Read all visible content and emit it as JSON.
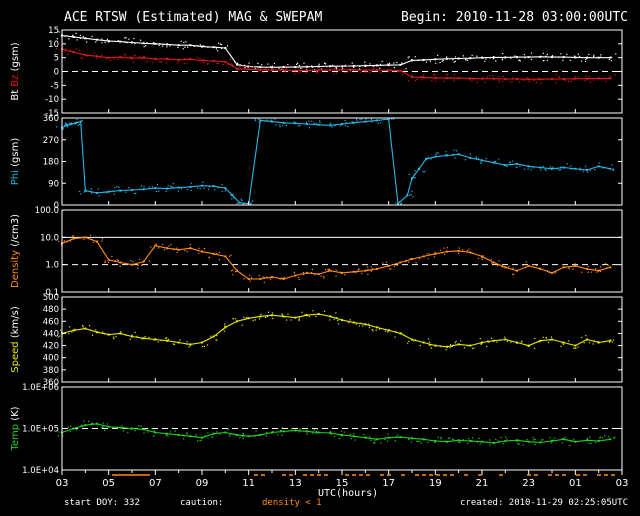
{
  "header": {
    "title": "ACE RTSW (Estimated) MAG & SWEPAM",
    "begin": "Begin: 2010-11-28 03:00:00UTC"
  },
  "footer": {
    "start_doy": "start DOY: 332",
    "caution": "caution:",
    "density_note": "density < 1",
    "created": "created: 2010-11-29 02:25:05UTC"
  },
  "colors": {
    "bt": "#ffffff",
    "bz": "#e01818",
    "phi": "#27b7e6",
    "density": "#ff8c1a",
    "speed": "#e8e800",
    "temp": "#22d022",
    "axes": "#ffffff",
    "grid": "#ffffff"
  },
  "chart_data": {
    "type": "scatter",
    "xlabel": "UTC(hours)",
    "x_ticks": [
      "03",
      "05",
      "07",
      "09",
      "11",
      "13",
      "15",
      "17",
      "19",
      "21",
      "23",
      "01",
      "03"
    ],
    "x_range": [
      3,
      27
    ],
    "panels": [
      {
        "id": "mag",
        "ylabel_parts": [
          {
            "text": "Bt",
            "color": "bt"
          },
          {
            "text": " ",
            "color": "bt"
          },
          {
            "text": "Bz",
            "color": "bz"
          },
          {
            "text": " (gsm)",
            "color": "bt"
          }
        ],
        "ylim": [
          -15,
          15
        ],
        "yticks": [
          "-15",
          "-10",
          "-5",
          "0",
          "5",
          "10",
          "15"
        ],
        "ytick_values": [
          -15,
          -10,
          -5,
          0,
          5,
          10,
          15
        ],
        "dashed_refs": [
          0
        ],
        "series": [
          {
            "color": "bt",
            "x": [
              3.0,
              3.5,
              4.0,
              4.5,
              5.0,
              5.5,
              6.0,
              6.5,
              7.0,
              7.5,
              8.0,
              8.5,
              9.0,
              9.5,
              10.0,
              10.5,
              11.0,
              11.5,
              12.0,
              12.5,
              13.0,
              13.5,
              14.0,
              14.5,
              15.0,
              15.5,
              16.0,
              16.5,
              17.0,
              17.5,
              18.0,
              18.5,
              19.0,
              19.5,
              20.0,
              20.5,
              21.0,
              21.5,
              22.0,
              22.5,
              23.0,
              23.5,
              24.0,
              24.5,
              25.0,
              25.5,
              26.0,
              26.5
            ],
            "y": [
              13,
              12.5,
              12,
              11.5,
              11,
              10.8,
              10.5,
              10.2,
              10,
              9.8,
              9.5,
              9.5,
              9.0,
              8.8,
              8.5,
              2.5,
              1.8,
              1.6,
              1.5,
              1.6,
              1.6,
              1.7,
              1.8,
              1.9,
              1.9,
              2.0,
              2.1,
              2.2,
              2.3,
              2.4,
              4.0,
              4.2,
              4.4,
              4.6,
              4.7,
              4.8,
              5.0,
              5.1,
              5.1,
              5.2,
              5.2,
              5.3,
              5.2,
              5.2,
              5.1,
              5.0,
              5.0,
              5.0
            ]
          },
          {
            "color": "bz",
            "x": [
              3.0,
              3.5,
              4.0,
              4.5,
              5.0,
              5.5,
              6.0,
              6.5,
              7.0,
              7.5,
              8.0,
              8.5,
              9.0,
              9.5,
              10.0,
              10.5,
              11.0,
              11.5,
              12.0,
              12.5,
              13.0,
              13.5,
              14.0,
              14.5,
              15.0,
              15.5,
              16.0,
              16.5,
              17.0,
              17.5,
              18.0,
              18.5,
              19.0,
              19.5,
              20.0,
              20.5,
              21.0,
              21.5,
              22.0,
              22.5,
              23.0,
              23.5,
              24.0,
              24.5,
              25.0,
              25.5,
              26.0,
              26.5
            ],
            "y": [
              8,
              7,
              6,
              5.5,
              5,
              5.2,
              4.8,
              5,
              4.5,
              4.6,
              4.2,
              4.4,
              4.0,
              3.8,
              3.5,
              1.0,
              0.8,
              0.6,
              0.5,
              0.5,
              0.4,
              0.4,
              0.5,
              0.5,
              0.6,
              0.6,
              0.5,
              0.5,
              0.4,
              0.3,
              -2.0,
              -2.2,
              -2.3,
              -2.4,
              -2.4,
              -2.5,
              -2.6,
              -2.6,
              -2.7,
              -2.7,
              -2.8,
              -2.8,
              -2.7,
              -2.7,
              -2.6,
              -2.6,
              -2.5,
              -2.5
            ]
          }
        ]
      },
      {
        "id": "phi",
        "ylabel_parts": [
          {
            "text": "Phi",
            "color": "phi"
          },
          {
            "text": " (gsm)",
            "color": "bt"
          }
        ],
        "ylim": [
          0,
          360
        ],
        "yticks": [
          "0",
          "90",
          "180",
          "270",
          "360"
        ],
        "ytick_values": [
          0,
          90,
          180,
          270,
          360
        ],
        "dashed_refs": [],
        "series": [
          {
            "color": "phi",
            "x": [
              3.0,
              3.2,
              3.4,
              3.6,
              3.8,
              4.0,
              4.5,
              5.0,
              5.5,
              6.0,
              6.5,
              7.0,
              7.5,
              8.0,
              8.5,
              9.0,
              9.5,
              10.0,
              10.3,
              10.6,
              11.0,
              11.5,
              12.0,
              12.5,
              13.0,
              13.5,
              14.0,
              14.5,
              15.0,
              15.5,
              16.0,
              16.5,
              17.0,
              17.4,
              17.8,
              18.0,
              18.3,
              18.6,
              19.0,
              19.5,
              20.0,
              20.5,
              21.0,
              21.5,
              22.0,
              22.5,
              23.0,
              23.5,
              24.0,
              24.5,
              25.0,
              25.5,
              26.0,
              26.5
            ],
            "y": [
              320,
              330,
              335,
              340,
              345,
              60,
              50,
              55,
              60,
              62,
              65,
              70,
              68,
              72,
              75,
              80,
              78,
              70,
              40,
              10,
              5,
              350,
              345,
              340,
              338,
              335,
              332,
              330,
              335,
              340,
              345,
              350,
              355,
              5,
              40,
              110,
              150,
              190,
              200,
              205,
              210,
              195,
              185,
              175,
              165,
              170,
              160,
              155,
              150,
              155,
              150,
              145,
              160,
              150
            ]
          }
        ]
      },
      {
        "id": "density",
        "ylabel_parts": [
          {
            "text": "Density",
            "color": "density"
          },
          {
            "text": " (/cm3)",
            "color": "bt"
          }
        ],
        "ylim": [
          0.1,
          100
        ],
        "log": true,
        "yticks": [
          "0.1",
          "1.0",
          "10.0",
          "100.0"
        ],
        "ytick_values": [
          0.1,
          1,
          10,
          100
        ],
        "dashed_refs": [
          1
        ],
        "solid_refs": [
          10
        ],
        "series": [
          {
            "color": "density",
            "x": [
              3.0,
              3.5,
              4.0,
              4.5,
              5.0,
              5.5,
              6.0,
              6.5,
              7.0,
              7.5,
              8.0,
              8.5,
              9.0,
              9.5,
              10.0,
              10.5,
              11.0,
              11.5,
              12.0,
              12.5,
              13.0,
              13.5,
              14.0,
              14.5,
              15.0,
              15.5,
              16.0,
              16.5,
              17.0,
              17.5,
              18.0,
              18.5,
              19.0,
              19.5,
              20.0,
              20.5,
              21.0,
              21.5,
              22.0,
              22.5,
              23.0,
              23.5,
              24.0,
              24.5,
              25.0,
              25.5,
              26.0,
              26.5
            ],
            "y": [
              6,
              9,
              10,
              7,
              1.5,
              1.2,
              1.0,
              1.3,
              5,
              4,
              3.5,
              4,
              3,
              2.5,
              2.0,
              0.6,
              0.3,
              0.3,
              0.35,
              0.3,
              0.4,
              0.5,
              0.45,
              0.6,
              0.5,
              0.55,
              0.6,
              0.7,
              0.9,
              1.2,
              1.6,
              2.0,
              2.5,
              3.0,
              3.2,
              2.8,
              2.0,
              1.2,
              0.8,
              0.6,
              0.9,
              0.7,
              0.5,
              0.8,
              0.9,
              0.7,
              0.6,
              0.8
            ]
          }
        ]
      },
      {
        "id": "speed",
        "ylabel_parts": [
          {
            "text": "Speed",
            "color": "speed"
          },
          {
            "text": " (km/s)",
            "color": "bt"
          }
        ],
        "ylim": [
          360,
          500
        ],
        "yticks": [
          "360",
          "380",
          "400",
          "420",
          "440",
          "460",
          "480",
          "500"
        ],
        "ytick_values": [
          360,
          380,
          400,
          420,
          440,
          460,
          480,
          500
        ],
        "dashed_refs": [],
        "series": [
          {
            "color": "speed",
            "x": [
              3.0,
              3.5,
              4.0,
              4.5,
              5.0,
              5.5,
              6.0,
              6.5,
              7.0,
              7.5,
              8.0,
              8.5,
              9.0,
              9.5,
              10.0,
              10.5,
              11.0,
              11.5,
              12.0,
              12.5,
              13.0,
              13.5,
              14.0,
              14.5,
              15.0,
              15.5,
              16.0,
              16.5,
              17.0,
              17.5,
              18.0,
              18.5,
              19.0,
              19.5,
              20.0,
              20.5,
              21.0,
              21.5,
              22.0,
              22.5,
              23.0,
              23.5,
              24.0,
              24.5,
              25.0,
              25.5,
              26.0,
              26.5
            ],
            "y": [
              440,
              445,
              448,
              442,
              438,
              440,
              435,
              432,
              430,
              428,
              425,
              422,
              425,
              435,
              450,
              460,
              465,
              468,
              470,
              468,
              466,
              470,
              472,
              468,
              462,
              458,
              455,
              450,
              445,
              440,
              430,
              425,
              420,
              418,
              422,
              420,
              425,
              428,
              430,
              425,
              420,
              428,
              430,
              425,
              420,
              430,
              425,
              428
            ]
          }
        ]
      },
      {
        "id": "temp",
        "ylabel_parts": [
          {
            "text": "Temp",
            "color": "temp"
          },
          {
            "text": " (K)",
            "color": "bt"
          }
        ],
        "ylim": [
          10000,
          1000000
        ],
        "log": true,
        "yticks": [
          "1.0E+04",
          "1.0E+05",
          "1.0E+06"
        ],
        "ytick_values": [
          10000,
          100000,
          1000000
        ],
        "dashed_refs": [
          100000
        ],
        "series": [
          {
            "color": "temp",
            "x": [
              3.0,
              3.5,
              4.0,
              4.5,
              5.0,
              5.5,
              6.0,
              6.5,
              7.0,
              7.5,
              8.0,
              8.5,
              9.0,
              9.5,
              10.0,
              10.5,
              11.0,
              11.5,
              12.0,
              12.5,
              13.0,
              13.5,
              14.0,
              14.5,
              15.0,
              15.5,
              16.0,
              16.5,
              17.0,
              17.5,
              18.0,
              18.5,
              19.0,
              19.5,
              20.0,
              20.5,
              21.0,
              21.5,
              22.0,
              22.5,
              23.0,
              23.5,
              24.0,
              24.5,
              25.0,
              25.5,
              26.0,
              26.5
            ],
            "y": [
              80000,
              100000,
              120000,
              130000,
              110000,
              105000,
              100000,
              95000,
              80000,
              75000,
              70000,
              65000,
              60000,
              75000,
              80000,
              70000,
              65000,
              70000,
              80000,
              85000,
              90000,
              85000,
              80000,
              78000,
              70000,
              65000,
              60000,
              55000,
              60000,
              62000,
              58000,
              55000,
              50000,
              48000,
              52000,
              50000,
              48000,
              45000,
              50000,
              52000,
              48000,
              46000,
              50000,
              55000,
              48000,
              52000,
              50000,
              55000
            ]
          }
        ]
      }
    ]
  }
}
